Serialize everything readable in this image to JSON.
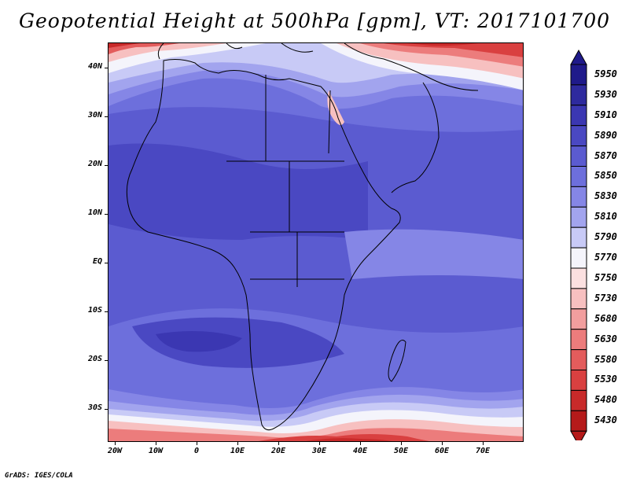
{
  "title": "Geopotential Height at 500hPa [gpm], VT: 2017101700",
  "lat_labels": [
    "40N",
    "30N",
    "20N",
    "10N",
    "EQ",
    "10S",
    "20S",
    "30S"
  ],
  "lon_labels": [
    "20W",
    "10W",
    "0",
    "10E",
    "20E",
    "30E",
    "40E",
    "50E",
    "60E",
    "70E"
  ],
  "colorbar": {
    "labels": [
      "5950",
      "5930",
      "5910",
      "5890",
      "5870",
      "5850",
      "5830",
      "5810",
      "5790",
      "5770",
      "5750",
      "5730",
      "5680",
      "5630",
      "5580",
      "5530",
      "5480",
      "5430"
    ],
    "colors": [
      "#1f1a8a",
      "#2e2a9e",
      "#3b37b2",
      "#4a48c2",
      "#5b5bd0",
      "#6d6fdc",
      "#8586e6",
      "#a2a4ee",
      "#c8caf6",
      "#f4f4fb",
      "#fbe0e0",
      "#f7c0c0",
      "#f29e9e",
      "#ec7c7c",
      "#e35c5c",
      "#d94040",
      "#c82a2a",
      "#b51a1a"
    ]
  },
  "footer": "GrADS: IGES/COLA"
}
